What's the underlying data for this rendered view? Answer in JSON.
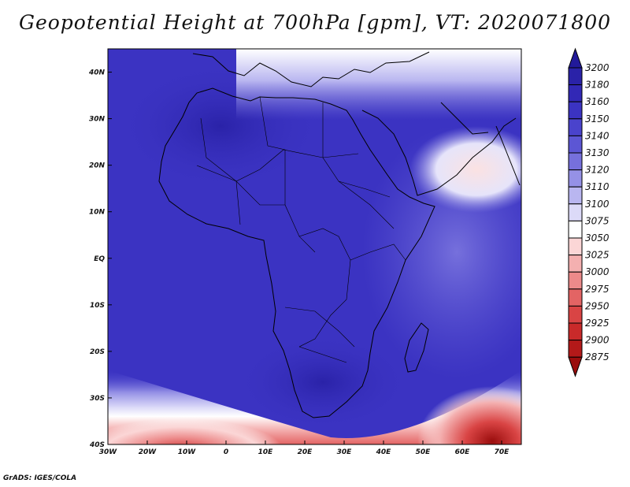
{
  "title": "Geopotential Height at 700hPa [gpm], VT: 2020071800",
  "credit": "GrADS: IGES/COLA",
  "map": {
    "lon_range": [
      -30,
      75
    ],
    "lat_range": [
      -40,
      45
    ],
    "lon_ticks": [
      {
        "value": -30,
        "label": "30W"
      },
      {
        "value": -20,
        "label": "20W"
      },
      {
        "value": -10,
        "label": "10W"
      },
      {
        "value": 0,
        "label": "0"
      },
      {
        "value": 10,
        "label": "10E"
      },
      {
        "value": 20,
        "label": "20E"
      },
      {
        "value": 30,
        "label": "30E"
      },
      {
        "value": 40,
        "label": "40E"
      },
      {
        "value": 50,
        "label": "50E"
      },
      {
        "value": 60,
        "label": "60E"
      },
      {
        "value": 70,
        "label": "70E"
      }
    ],
    "lat_ticks": [
      {
        "value": 40,
        "label": "40N"
      },
      {
        "value": 30,
        "label": "30N"
      },
      {
        "value": 20,
        "label": "20N"
      },
      {
        "value": 10,
        "label": "10N"
      },
      {
        "value": 0,
        "label": "EQ"
      },
      {
        "value": -10,
        "label": "10S"
      },
      {
        "value": -20,
        "label": "20S"
      },
      {
        "value": -30,
        "label": "30S"
      },
      {
        "value": -40,
        "label": "40S"
      }
    ]
  },
  "colorbar": {
    "levels": [
      "3200",
      "3180",
      "3160",
      "3150",
      "3140",
      "3130",
      "3120",
      "3110",
      "3100",
      "3075",
      "3050",
      "3025",
      "3000",
      "2975",
      "2950",
      "2925",
      "2900",
      "2875"
    ],
    "colors": [
      "#221a9a",
      "#2a22a8",
      "#3228b6",
      "#3b33c2",
      "#4a43cc",
      "#5c56d4",
      "#7670dc",
      "#9591e6",
      "#b9b6f0",
      "#dcdaf8",
      "#ffffff",
      "#fbd6d6",
      "#f4b0b0",
      "#ec8a8a",
      "#e36464",
      "#d94444",
      "#c92a2a",
      "#b31919",
      "#9a0d0d"
    ]
  }
}
